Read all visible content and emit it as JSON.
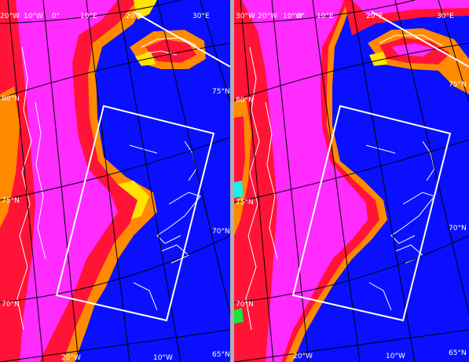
{
  "panels": [
    {
      "id": "left",
      "labels": {
        "top": [
          "20°W",
          "10°W",
          "0°",
          "10°E",
          "20°E",
          "30°E"
        ],
        "left": [
          "80°N",
          "75°N",
          "70°N"
        ],
        "right": [
          "75°N",
          "70°N",
          "65°N"
        ],
        "bottom": [
          "20°W",
          "10°W"
        ]
      }
    },
    {
      "id": "right",
      "labels": {
        "top": [
          "30°W",
          "20°W",
          "10°W",
          "0°",
          "10°E",
          "20°E",
          "30°E"
        ],
        "left": [
          "80°N",
          "75°N",
          "70°N"
        ],
        "right": [
          "75°N",
          "70°N",
          "65°N"
        ],
        "bottom": [
          "20°W",
          "10°W"
        ]
      }
    }
  ],
  "colors": {
    "ocean": "#0a10ff",
    "magenta": "#ff2bff",
    "red": "#ff1437",
    "orange": "#ff8a00",
    "yellow": "#ffe400",
    "green": "#19e63a",
    "cyan": "#19f0e8",
    "line": "#ffffff",
    "separator": "#b0b0b0"
  }
}
